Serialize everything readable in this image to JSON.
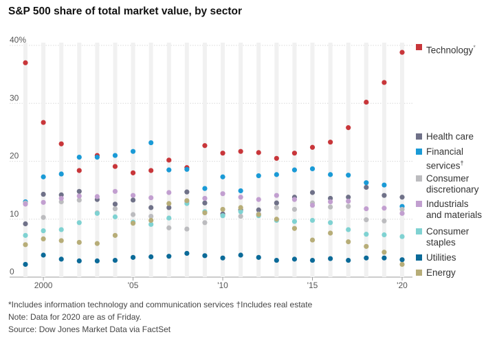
{
  "chart_data": {
    "type": "scatter",
    "title": "S&P 500 share of total market value, by sector",
    "xlabel": "",
    "ylabel": "",
    "x_range": [
      1999,
      2020
    ],
    "ylim": [
      0,
      40
    ],
    "y_ticks": [
      {
        "value": 40,
        "label": "40%"
      },
      {
        "value": 30,
        "label": "30"
      },
      {
        "value": 20,
        "label": "20"
      },
      {
        "value": 10,
        "label": "10"
      },
      {
        "value": 0,
        "label": "0"
      }
    ],
    "x_ticks": [
      {
        "value": 2000,
        "label": "2000"
      },
      {
        "value": 2005,
        "label": "'05"
      },
      {
        "value": 2010,
        "label": "'10"
      },
      {
        "value": 2015,
        "label": "'15"
      },
      {
        "value": 2020,
        "label": "'20"
      }
    ],
    "grid": true,
    "legend_position": "right",
    "x": [
      1999,
      2000,
      2001,
      2002,
      2003,
      2004,
      2005,
      2006,
      2007,
      2008,
      2009,
      2010,
      2011,
      2012,
      2013,
      2014,
      2015,
      2016,
      2017,
      2018,
      2019,
      2020
    ],
    "series": [
      {
        "name": "Technology*",
        "color": "#c8363a",
        "values": [
          37.0,
          26.7,
          23.0,
          18.4,
          21.0,
          19.1,
          18.0,
          18.4,
          20.2,
          18.9,
          22.7,
          21.4,
          21.7,
          21.5,
          20.5,
          21.4,
          22.4,
          23.3,
          25.8,
          30.2,
          33.6,
          38.8
        ]
      },
      {
        "name": "Health care",
        "color": "#6f7188",
        "values": [
          9.2,
          14.3,
          14.2,
          14.8,
          13.4,
          12.6,
          13.3,
          12.0,
          12.0,
          14.7,
          12.8,
          10.9,
          11.6,
          11.6,
          12.8,
          13.8,
          14.6,
          13.6,
          13.8,
          15.5,
          14.1,
          13.8
        ]
      },
      {
        "name": "Financial\nservices†",
        "color": "#1a9ad6",
        "values": [
          13.0,
          17.3,
          17.8,
          20.7,
          20.7,
          21.0,
          21.7,
          23.2,
          18.5,
          18.6,
          15.3,
          17.3,
          14.9,
          17.5,
          17.7,
          18.5,
          18.7,
          17.7,
          17.6,
          16.3,
          15.9,
          12.2
        ]
      },
      {
        "name": "Consumer\ndiscretionary",
        "color": "#bcbcbf",
        "values": [
          12.8,
          10.3,
          13.0,
          13.3,
          11.1,
          11.8,
          10.8,
          10.5,
          8.5,
          8.3,
          9.4,
          10.6,
          10.5,
          10.9,
          12.0,
          11.7,
          12.8,
          12.1,
          12.2,
          9.9,
          9.7,
          11.7
        ]
      },
      {
        "name": "Industrials\nand materials",
        "color": "#c29fd0",
        "values": [
          12.6,
          12.9,
          13.6,
          14.0,
          13.9,
          14.8,
          14.1,
          13.7,
          14.6,
          13.0,
          13.6,
          14.4,
          13.8,
          13.4,
          14.1,
          13.4,
          12.4,
          13.0,
          13.1,
          11.8,
          11.9,
          11.0
        ]
      },
      {
        "name": "Consumer\nstaples",
        "color": "#7fd2d2",
        "values": [
          7.2,
          8.0,
          8.2,
          9.4,
          11.0,
          10.4,
          9.5,
          9.1,
          10.2,
          12.7,
          11.3,
          10.6,
          11.3,
          10.6,
          9.8,
          9.6,
          9.8,
          9.4,
          8.2,
          7.4,
          7.3,
          7.0
        ]
      },
      {
        "name": "Utilities",
        "color": "#0b6a98",
        "values": [
          2.2,
          3.8,
          3.1,
          2.8,
          2.8,
          2.9,
          3.4,
          3.5,
          3.6,
          4.1,
          3.7,
          3.3,
          3.8,
          3.4,
          2.9,
          3.1,
          2.9,
          3.2,
          2.9,
          3.3,
          3.3,
          3.0
        ]
      },
      {
        "name": "Energy",
        "color": "#b7ad78",
        "values": [
          5.6,
          6.6,
          6.3,
          6.0,
          5.8,
          7.2,
          9.3,
          9.8,
          12.7,
          13.2,
          11.1,
          11.7,
          12.0,
          10.8,
          10.0,
          8.4,
          6.4,
          7.6,
          6.1,
          5.3,
          4.3,
          2.2
        ]
      }
    ],
    "legend_rows": [
      {
        "series": 0,
        "top": 70
      },
      {
        "series": 1,
        "top": 200
      },
      {
        "series": 2,
        "top": 222
      },
      {
        "series": 3,
        "top": 261
      },
      {
        "series": 4,
        "top": 298
      },
      {
        "series": 5,
        "top": 338
      },
      {
        "series": 6,
        "top": 376
      },
      {
        "series": 7,
        "top": 398
      }
    ]
  },
  "footnotes": {
    "line1": "*Includes information technology and communication services   †Includes real estate",
    "line2": "Note: Data for 2020 are as of Friday.",
    "line3": "Source: Dow Jones Market Data via FactSet"
  }
}
